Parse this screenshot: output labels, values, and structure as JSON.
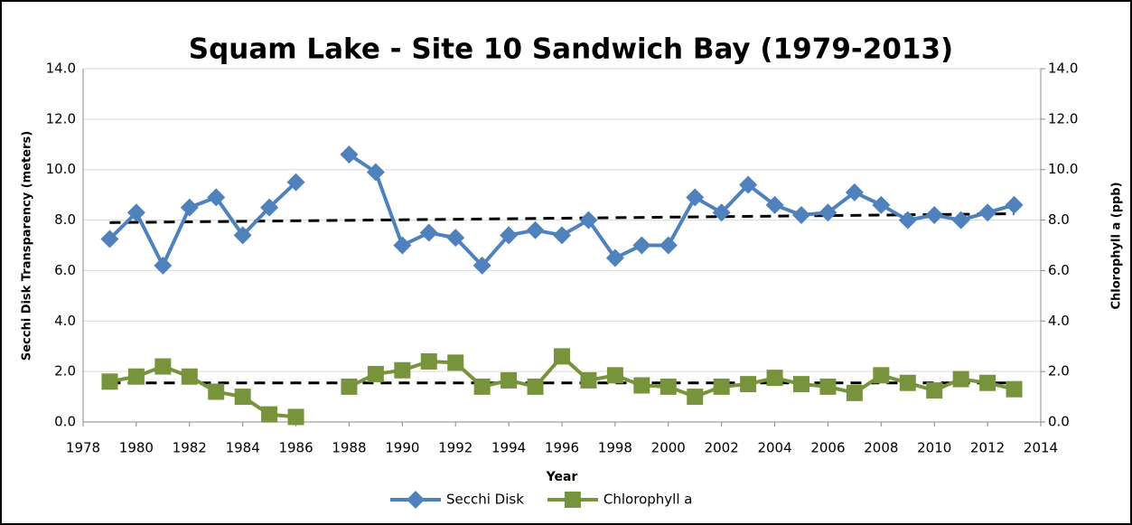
{
  "chart_data": {
    "type": "line",
    "title": "Squam Lake - Site 10 Sandwich Bay (1979-2013)",
    "x_label": "Year",
    "y_label": "Secchi Disk Transparency (meters)",
    "y2_label": "Chlorophyll a (ppb)",
    "x": [
      1979,
      1980,
      1981,
      1982,
      1983,
      1984,
      1985,
      1986,
      1987,
      1988,
      1989,
      1990,
      1991,
      1992,
      1993,
      1994,
      1995,
      1996,
      1997,
      1998,
      1999,
      2000,
      2001,
      2002,
      2003,
      2004,
      2005,
      2006,
      2007,
      2008,
      2009,
      2010,
      2011,
      2012,
      2013
    ],
    "series": [
      {
        "name": "Secchi Disk",
        "color": "#4f81bd",
        "marker": "diamond",
        "values": [
          7.25,
          8.3,
          6.2,
          8.5,
          8.9,
          7.4,
          8.5,
          9.5,
          null,
          10.6,
          9.9,
          7.0,
          7.5,
          7.3,
          6.2,
          7.4,
          7.6,
          7.4,
          8.0,
          6.5,
          7.0,
          7.0,
          8.9,
          8.3,
          9.4,
          8.6,
          8.2,
          8.3,
          9.1,
          8.6,
          8.0,
          8.2,
          8.0,
          8.3,
          8.6
        ]
      },
      {
        "name": "Chlorophyll a",
        "color": "#77933c",
        "marker": "square",
        "axis": "y2",
        "values": [
          1.6,
          1.8,
          2.2,
          1.8,
          1.2,
          1.0,
          0.3,
          0.2,
          null,
          1.4,
          1.9,
          2.05,
          2.4,
          2.35,
          1.4,
          1.65,
          1.4,
          2.6,
          1.65,
          1.85,
          1.45,
          1.4,
          1.0,
          1.4,
          1.5,
          1.75,
          1.5,
          1.4,
          1.15,
          1.85,
          1.55,
          1.25,
          1.7,
          1.55,
          1.3
        ]
      }
    ],
    "trend_lines": [
      {
        "x": [
          1979,
          2013
        ],
        "values": [
          7.9,
          8.25
        ]
      },
      {
        "x": [
          1979,
          2013
        ],
        "values": [
          1.55,
          1.55
        ],
        "axis": "y2"
      }
    ],
    "xlim": [
      1978,
      2014
    ],
    "xticks": [
      1978,
      1980,
      1982,
      1984,
      1986,
      1988,
      1990,
      1992,
      1994,
      1996,
      1998,
      2000,
      2002,
      2004,
      2006,
      2008,
      2010,
      2012,
      2014
    ],
    "ylim": [
      0,
      14
    ],
    "yticks": [
      {
        "value": 0,
        "label": "0.0"
      },
      {
        "value": 2,
        "label": "2.0"
      },
      {
        "value": 4,
        "label": "4.0"
      },
      {
        "value": 6,
        "label": "6.0"
      },
      {
        "value": 8,
        "label": "8.0"
      },
      {
        "value": 10,
        "label": "10.0"
      },
      {
        "value": 12,
        "label": "12.0"
      },
      {
        "value": 14,
        "label": "14.0"
      }
    ],
    "y2lim": [
      0,
      14
    ],
    "y2ticks": [
      {
        "value": 0,
        "label": "0.0"
      },
      {
        "value": 2,
        "label": "2.0"
      },
      {
        "value": 4,
        "label": "4.0"
      },
      {
        "value": 6,
        "label": "6.0"
      },
      {
        "value": 8,
        "label": "8.0"
      },
      {
        "value": 10,
        "label": "10.0"
      },
      {
        "value": 12,
        "label": "12.0"
      },
      {
        "value": 14,
        "label": "14.0"
      }
    ],
    "grid": true,
    "legend": "bottom"
  }
}
